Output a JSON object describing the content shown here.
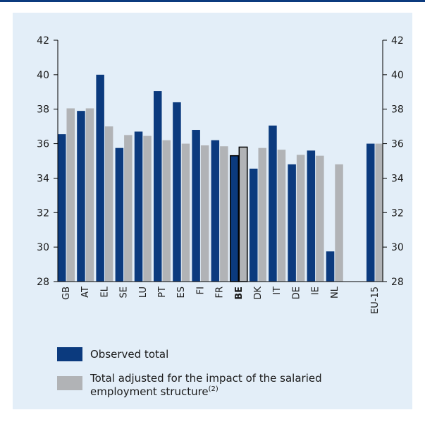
{
  "colors": {
    "observed": "#0b3a7e",
    "adjusted": "#b1b3b6",
    "panel_bg": "#e3eef8",
    "top_rule": "#0b3a7e"
  },
  "chart_data": {
    "type": "bar",
    "categories": [
      "GB",
      "AT",
      "EL",
      "SE",
      "LU",
      "PT",
      "ES",
      "FI",
      "FR",
      "BE",
      "DK",
      "IT",
      "DE",
      "IE",
      "NL",
      "EU-15"
    ],
    "highlight_category": "BE",
    "series": [
      {
        "name": "Observed total",
        "values": [
          36.55,
          37.9,
          40.0,
          35.75,
          36.7,
          39.05,
          38.4,
          36.8,
          36.2,
          35.3,
          34.55,
          37.05,
          34.8,
          35.6,
          29.75,
          36.0
        ]
      },
      {
        "name": "Total adjusted for the impact of the salaried employment structure",
        "values": [
          38.05,
          38.05,
          37.0,
          36.5,
          36.45,
          36.2,
          36.0,
          35.9,
          35.85,
          35.8,
          35.75,
          35.65,
          35.35,
          35.3,
          34.8,
          36.0
        ]
      }
    ],
    "ylim": [
      28,
      42
    ],
    "yticks": [
      "28",
      "30",
      "32",
      "34",
      "36",
      "38",
      "40",
      "42"
    ],
    "right_axis": true,
    "grid": false,
    "legend_position": "bottom"
  },
  "legend": {
    "observed_label": "Observed total",
    "adjusted_label_line1": "Total adjusted for the impact of the salaried",
    "adjusted_label_line2": "employment structure",
    "adjusted_label_note": "(2)"
  }
}
